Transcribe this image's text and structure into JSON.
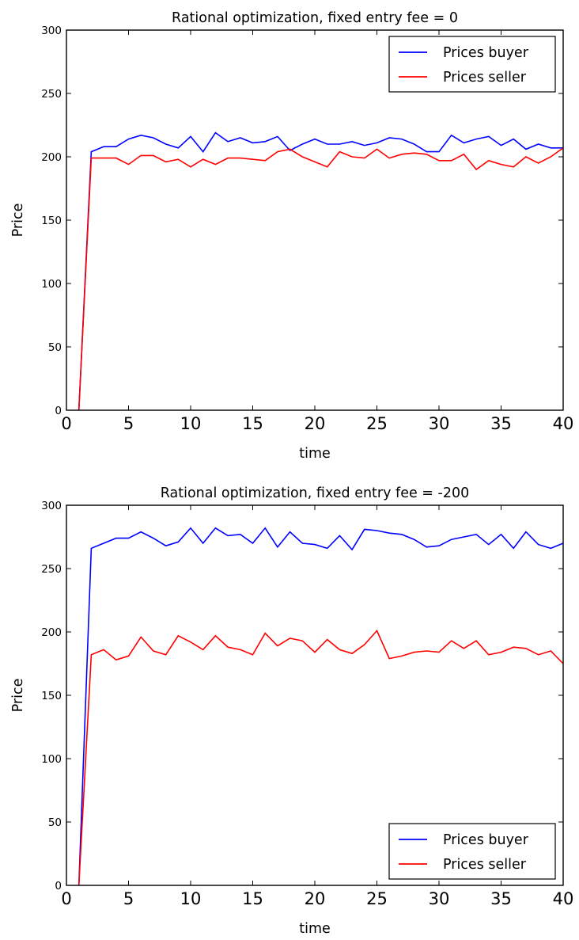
{
  "chart_data": [
    {
      "type": "line",
      "title": "Rational optimization, fixed entry fee = 0",
      "xlabel": "time",
      "ylabel": "Price",
      "xlim": [
        0,
        40
      ],
      "ylim": [
        0,
        300
      ],
      "xticks": [
        0,
        5,
        10,
        15,
        20,
        25,
        30,
        35,
        40
      ],
      "yticks": [
        0,
        50,
        100,
        150,
        200,
        250,
        300
      ],
      "legend_position": "top-right",
      "x": [
        1,
        2,
        3,
        4,
        5,
        6,
        7,
        8,
        9,
        10,
        11,
        12,
        13,
        14,
        15,
        16,
        17,
        18,
        19,
        20,
        21,
        22,
        23,
        24,
        25,
        26,
        27,
        28,
        29,
        30,
        31,
        32,
        33,
        34,
        35,
        36,
        37,
        38,
        39,
        40
      ],
      "series": [
        {
          "name": "Prices buyer",
          "color": "#0000ff",
          "values": [
            0,
            204,
            208,
            208,
            214,
            217,
            215,
            210,
            207,
            216,
            204,
            219,
            212,
            215,
            211,
            212,
            216,
            205,
            210,
            214,
            210,
            210,
            212,
            209,
            211,
            215,
            214,
            210,
            204,
            204,
            217,
            211,
            214,
            216,
            209,
            214,
            206,
            210,
            207,
            207
          ]
        },
        {
          "name": "Prices seller",
          "color": "#ff0000",
          "values": [
            0,
            199,
            199,
            199,
            194,
            201,
            201,
            196,
            198,
            192,
            198,
            194,
            199,
            199,
            198,
            197,
            204,
            206,
            200,
            196,
            192,
            204,
            200,
            199,
            206,
            199,
            202,
            203,
            202,
            197,
            197,
            202,
            190,
            197,
            194,
            192,
            200,
            195,
            200,
            207
          ]
        }
      ]
    },
    {
      "type": "line",
      "title": "Rational optimization, fixed entry fee = -200",
      "xlabel": "time",
      "ylabel": "Price",
      "xlim": [
        0,
        40
      ],
      "ylim": [
        0,
        300
      ],
      "xticks": [
        0,
        5,
        10,
        15,
        20,
        25,
        30,
        35,
        40
      ],
      "yticks": [
        0,
        50,
        100,
        150,
        200,
        250,
        300
      ],
      "legend_position": "bottom-right",
      "x": [
        1,
        2,
        3,
        4,
        5,
        6,
        7,
        8,
        9,
        10,
        11,
        12,
        13,
        14,
        15,
        16,
        17,
        18,
        19,
        20,
        21,
        22,
        23,
        24,
        25,
        26,
        27,
        28,
        29,
        30,
        31,
        32,
        33,
        34,
        35,
        36,
        37,
        38,
        39,
        40
      ],
      "series": [
        {
          "name": "Prices buyer",
          "color": "#0000ff",
          "values": [
            0,
            266,
            270,
            274,
            274,
            279,
            274,
            268,
            271,
            282,
            270,
            282,
            276,
            277,
            270,
            282,
            267,
            279,
            270,
            269,
            266,
            276,
            265,
            281,
            280,
            278,
            277,
            273,
            267,
            268,
            273,
            275,
            277,
            269,
            277,
            266,
            279,
            269,
            266,
            270
          ]
        },
        {
          "name": "Prices seller",
          "color": "#ff0000",
          "values": [
            0,
            182,
            186,
            178,
            181,
            196,
            185,
            182,
            197,
            192,
            186,
            197,
            188,
            186,
            182,
            199,
            189,
            195,
            193,
            184,
            194,
            186,
            183,
            190,
            201,
            179,
            181,
            184,
            185,
            184,
            193,
            187,
            193,
            182,
            184,
            188,
            187,
            182,
            185,
            175
          ]
        }
      ]
    }
  ]
}
